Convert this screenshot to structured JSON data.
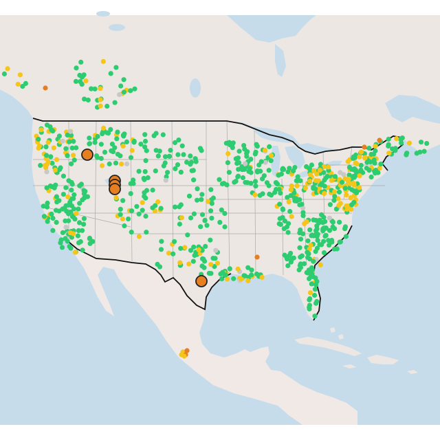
{
  "map": {
    "basemap": "light-gray-topo",
    "projection": "web-mercator",
    "region": "North America",
    "colors": {
      "water": "#c6dcea",
      "land": "#ede7e4",
      "land_mexico": "#f1e9e6",
      "us_border": "#111111",
      "state_lines": "#a9a9a9",
      "road_lines": "#ffffff"
    }
  },
  "legend_colors": {
    "good": "#2ecc71",
    "moderate": "#f5c518",
    "unhealthy_sensitive": "#e67e22",
    "no_data": "#c8c8c8"
  },
  "highlighted_sites": [
    {
      "name": "site-idaho-panhandle",
      "category": "unhealthy_sensitive"
    },
    {
      "name": "site-utah-1",
      "category": "unhealthy_sensitive"
    },
    {
      "name": "site-utah-2",
      "category": "unhealthy_sensitive"
    },
    {
      "name": "site-utah-3",
      "category": "unhealthy_sensitive"
    },
    {
      "name": "site-south-texas",
      "category": "unhealthy_sensitive"
    }
  ]
}
